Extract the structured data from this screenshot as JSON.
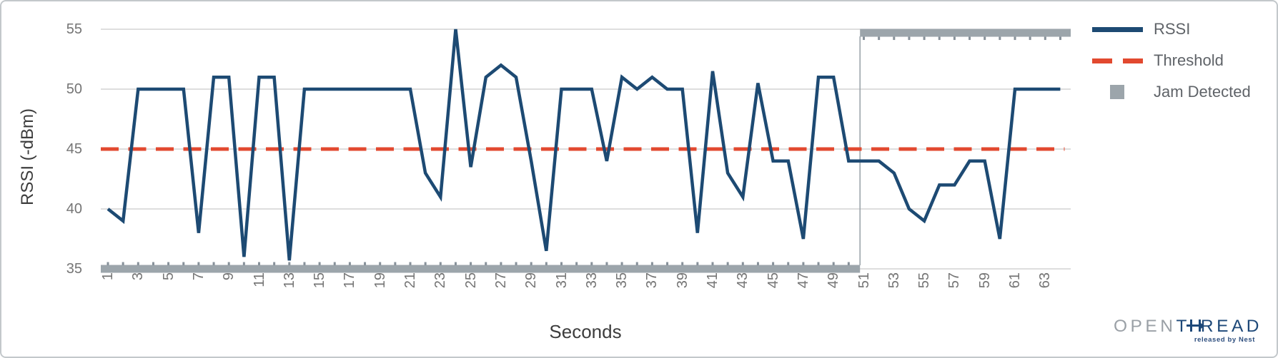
{
  "chart_data": {
    "type": "line",
    "title": "",
    "xlabel": "Seconds",
    "ylabel": "RSSI (-dBm)",
    "xlim": [
      1,
      64
    ],
    "ylim": [
      35,
      55
    ],
    "y_ticks": [
      35,
      40,
      45,
      50,
      55
    ],
    "x_tick_labels": [
      1,
      3,
      5,
      7,
      9,
      11,
      13,
      15,
      17,
      19,
      21,
      23,
      25,
      27,
      29,
      31,
      33,
      35,
      37,
      39,
      41,
      43,
      45,
      47,
      49,
      51,
      53,
      55,
      57,
      59,
      61,
      63
    ],
    "grid": "horizontal",
    "legend_position": "right-outside",
    "series": [
      {
        "name": "RSSI",
        "type": "line",
        "color": "#1d4a73",
        "x_start_second": 1,
        "values": [
          40,
          39,
          50,
          50,
          50,
          50,
          38,
          51,
          51,
          36,
          51,
          51,
          35.7,
          50,
          50,
          50,
          50,
          50,
          50,
          50,
          50,
          43,
          41,
          55,
          43.5,
          51,
          52,
          51,
          44,
          36.5,
          50,
          50,
          50,
          44,
          51,
          50,
          51,
          50,
          50,
          38,
          51.5,
          43,
          41,
          50.5,
          44,
          44,
          37.5,
          51,
          51,
          44,
          44,
          44,
          43,
          40,
          39,
          42,
          42,
          44,
          44,
          37.5,
          50,
          50,
          50,
          50
        ]
      },
      {
        "name": "Threshold",
        "type": "horizontal-dashed-line",
        "color": "#e2492f",
        "value": 45
      },
      {
        "name": "Jam Detected",
        "type": "step",
        "color": "#9ca5ab",
        "off_value": 35,
        "on_value": 54.7,
        "off_seconds": "1-50",
        "on_seconds": "51-64"
      }
    ]
  },
  "legend": {
    "items": [
      {
        "label": "RSSI",
        "swatch": "solid-line",
        "color": "#1d4a73"
      },
      {
        "label": "Threshold",
        "swatch": "dashed-line",
        "color": "#e2492f"
      },
      {
        "label": "Jam Detected",
        "swatch": "square",
        "color": "#9ca5ab"
      }
    ]
  },
  "axes": {
    "x_title": "Seconds",
    "y_title": "RSSI (-dBm)"
  },
  "logo": {
    "part_open": "OPEN",
    "part_t": "T",
    "part_read": "READ",
    "tagline": "released by Nest"
  },
  "colors": {
    "rssi_line": "#1d4a73",
    "threshold_line": "#e2492f",
    "jam_bar": "#9ca5ab",
    "jam_tick_nub": "#87919a",
    "gridline": "#c9c9c9",
    "tick_text": "#757575",
    "axis_title_text": "#3d3d3d",
    "legend_text": "#5f6368"
  }
}
